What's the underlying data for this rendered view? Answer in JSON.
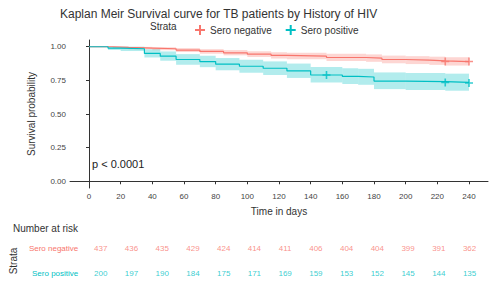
{
  "chart_data": {
    "type": "line",
    "title": "Kaplan Meir Survival curve for TB patients by History of HIV",
    "x_label": "Time in days",
    "y_label": "Survival probability",
    "legend_title": "Strata",
    "legend": "top",
    "annotation": "p < 0.0001",
    "grid": false,
    "line_style": "step",
    "marker": "plus",
    "xlim": [
      -12,
      252
    ],
    "xticks": [
      0,
      20,
      40,
      60,
      80,
      100,
      120,
      140,
      160,
      180,
      200,
      220,
      240
    ],
    "ylim": [
      -0.05,
      1.05
    ],
    "yticks": [
      {
        "value": 0,
        "label": "0.00"
      },
      {
        "value": 0.25,
        "label": "0.25"
      },
      {
        "value": 0.5,
        "label": "0.50"
      },
      {
        "value": 0.75,
        "label": "0.75"
      },
      {
        "value": 1,
        "label": "1.00"
      }
    ],
    "series": [
      {
        "name": "Sero negative",
        "color": "#F8766D",
        "x": [
          0,
          15,
          25,
          40,
          55,
          70,
          85,
          100,
          115,
          125,
          150,
          175,
          185,
          200,
          215,
          225,
          240
        ],
        "values": [
          1,
          0.995,
          0.99,
          0.985,
          0.975,
          0.965,
          0.955,
          0.945,
          0.935,
          0.93,
          0.92,
          0.915,
          0.905,
          0.9,
          0.895,
          0.89,
          0.89
        ],
        "lower": [
          1,
          0.988,
          0.981,
          0.974,
          0.961,
          0.948,
          0.936,
          0.924,
          0.912,
          0.906,
          0.894,
          0.888,
          0.877,
          0.871,
          0.865,
          0.86,
          0.86
        ],
        "upper": [
          1,
          1,
          0.999,
          0.996,
          0.99,
          0.982,
          0.975,
          0.967,
          0.959,
          0.955,
          0.947,
          0.943,
          0.934,
          0.93,
          0.926,
          0.922,
          0.922
        ],
        "censored_x": [
          225,
          240
        ]
      },
      {
        "name": "Sero positive",
        "color": "#00BFC4",
        "x": [
          0,
          12,
          20,
          35,
          45,
          55,
          70,
          80,
          95,
          110,
          125,
          140,
          160,
          170,
          180,
          200,
          225,
          240
        ],
        "values": [
          1,
          0.99,
          0.985,
          0.95,
          0.93,
          0.905,
          0.89,
          0.87,
          0.855,
          0.84,
          0.82,
          0.79,
          0.78,
          0.775,
          0.745,
          0.74,
          0.735,
          0.73
        ],
        "lower": [
          1,
          0.976,
          0.968,
          0.92,
          0.896,
          0.866,
          0.848,
          0.825,
          0.807,
          0.79,
          0.768,
          0.734,
          0.723,
          0.717,
          0.685,
          0.679,
          0.673,
          0.667
        ],
        "upper": [
          1,
          1,
          1,
          0.981,
          0.965,
          0.945,
          0.933,
          0.916,
          0.904,
          0.891,
          0.875,
          0.849,
          0.84,
          0.836,
          0.809,
          0.804,
          0.8,
          0.796
        ],
        "censored_x": [
          150,
          225,
          240
        ]
      }
    ],
    "risk_table": {
      "title": "Number at risk",
      "y_label": "Strata",
      "x": [
        0,
        20,
        40,
        60,
        80,
        100,
        120,
        140,
        160,
        180,
        200,
        220,
        240
      ],
      "rows": [
        {
          "name": "Sero negative",
          "color": "#F8766D",
          "values": [
            437,
            436,
            435,
            429,
            424,
            414,
            411,
            406,
            404,
            404,
            399,
            391,
            362
          ]
        },
        {
          "name": "Sero positive",
          "color": "#00BFC4",
          "values": [
            200,
            197,
            190,
            184,
            175,
            171,
            169,
            159,
            153,
            152,
            145,
            144,
            135
          ]
        }
      ]
    }
  }
}
